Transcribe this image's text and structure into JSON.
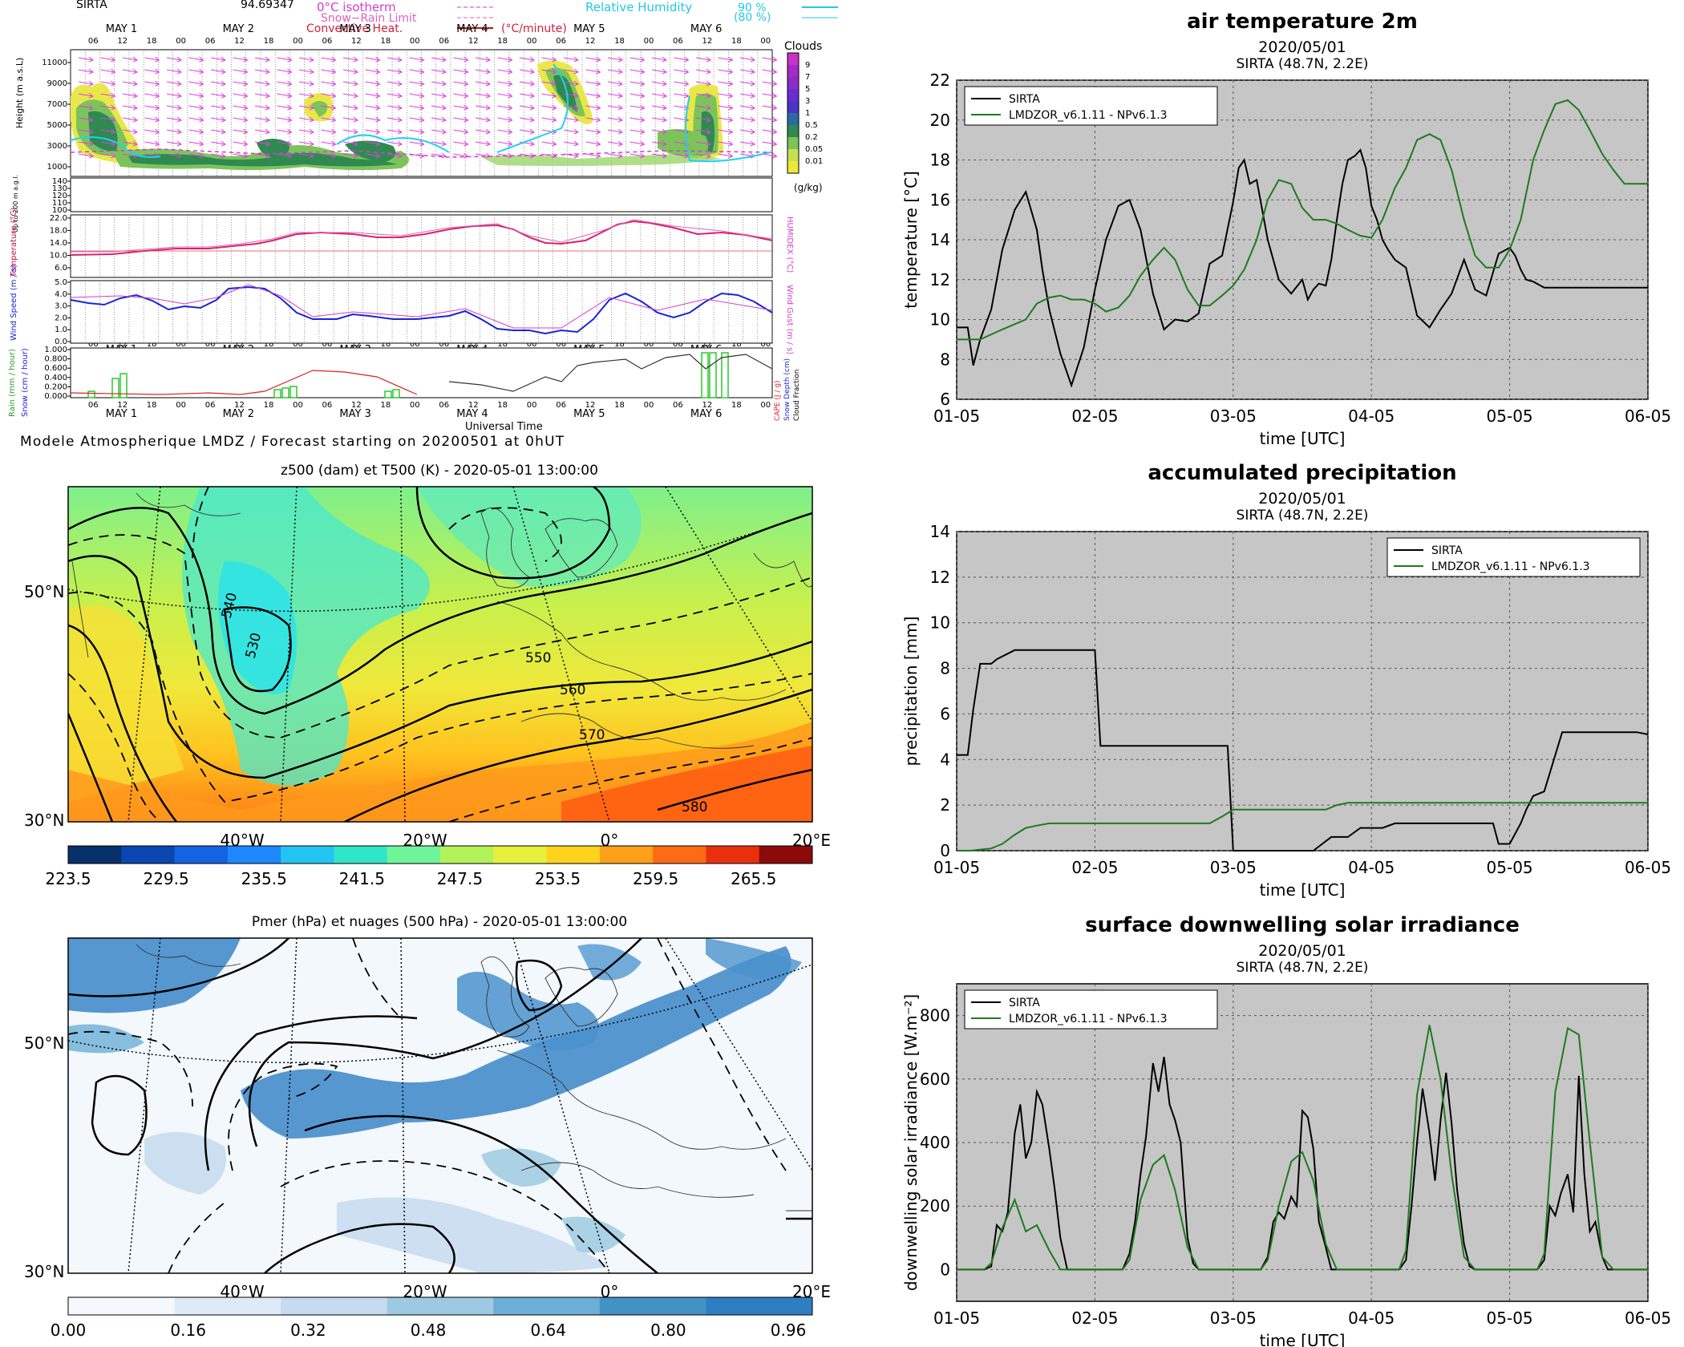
{
  "meteogram": {
    "station": "SIRTA",
    "altitude_text": "94.69347",
    "legend": {
      "isotherm": "0°C isotherm",
      "snow_rain": "Snow−Rain Limit",
      "convective": "Convective Heat.",
      "convective_unit": "(°C/minute)",
      "rh": "Relative Humidity",
      "rh_90": "90  %",
      "rh_80": "(80  %)"
    },
    "clouds_title": "Clouds",
    "clouds_unit": "(g/kg)",
    "clouds_ticks": [
      "9",
      "7",
      "5",
      "3",
      "1",
      "0.5",
      "0.2",
      "0.05",
      "0.01"
    ],
    "days": [
      "MAY  1",
      "MAY  2",
      "MAY  3",
      "MAY  4",
      "MAY  5",
      "MAY  6"
    ],
    "hour_labels": [
      "06",
      "12",
      "18",
      "00"
    ],
    "height_label": "Height (m a.s.L)",
    "height_ticks": [
      "11000",
      "9000",
      "7000",
      "5000",
      "3000",
      "1000"
    ],
    "low_height_label": "Up to 200 m a.g.l.",
    "low_height_ticks": [
      "140",
      "130",
      "120",
      "110",
      "100"
    ],
    "temp_label": "Temperature (°C)",
    "temp_ticks": [
      "22.0",
      "18.0",
      "14.0",
      "10.0",
      "6.0"
    ],
    "humidex_label": "HUMIDEX (°C)",
    "wind_label": "Wind Speed (m / s)",
    "wind_ticks": [
      "5.0",
      "4.0",
      "3.0",
      "2.0",
      "1.0",
      "0.0"
    ],
    "wind_gust_label": "Wind Gust (m / s)",
    "rain_ticks": [
      "1.000",
      "0.800",
      "0.600",
      "0.400",
      "0.200",
      "0.000"
    ],
    "rain_label": "Rain (mm / hour)",
    "snow_label": "Snow (cm / hour)",
    "cape_label": "CAPE (J / g)",
    "snow_depth_label": "Snow Depth (cm)",
    "cloud_fraction_label": "Cloud Fraction",
    "time_label": "Universal Time",
    "footer": "Modele Atmospherique LMDZ / Forecast starting on 20200501 at 0hUT"
  },
  "map1": {
    "title": "z500 (dam) et T500 (K) - 2020-05-01 13:00:00",
    "lat_labels": [
      "50°N",
      "30°N"
    ],
    "lon_labels": [
      "40°W",
      "20°W",
      "0°",
      "20°E"
    ],
    "contour_labels": [
      "540",
      "530",
      "550",
      "560",
      "570",
      "580"
    ],
    "colorbar_ticks": [
      "223.5",
      "229.5",
      "235.5",
      "241.5",
      "247.5",
      "253.5",
      "259.5",
      "265.5"
    ],
    "colorbar_colors": [
      "#08306b",
      "#0a47b0",
      "#1463e0",
      "#1e88ff",
      "#22c4f2",
      "#30e6c8",
      "#6ef59a",
      "#b4f25a",
      "#e6ef3c",
      "#ffd21e",
      "#ffa01a",
      "#ff6a14",
      "#e8300e",
      "#8c0a0a"
    ]
  },
  "map2": {
    "title": "Pmer (hPa) et nuages (500 hPa) - 2020-05-01 13:00:00",
    "lat_labels": [
      "50°N",
      "30°N"
    ],
    "lon_labels": [
      "40°W",
      "20°W",
      "0°",
      "20°E"
    ],
    "colorbar_ticks": [
      "0.00",
      "0.16",
      "0.32",
      "0.48",
      "0.64",
      "0.80",
      "0.96"
    ],
    "colorbar_colors": [
      "#f5f9fd",
      "#deebf7",
      "#c6dbef",
      "#9ecae1",
      "#6baed6",
      "#4292c6",
      "#2f7ec1"
    ]
  },
  "chart_data": [
    {
      "type": "line",
      "title": "air temperature 2m",
      "subtitle": "2020/05/01",
      "subtitle2": "SIRTA (48.7N, 2.2E)",
      "xlabel": "time [UTC]",
      "ylabel": "temperature [°C]",
      "x_ticks": [
        "01-05",
        "02-05",
        "03-05",
        "04-05",
        "05-05",
        "06-05"
      ],
      "y_ticks": [
        6,
        8,
        10,
        12,
        14,
        16,
        18,
        20,
        22
      ],
      "xlim": [
        0,
        5
      ],
      "ylim": [
        6,
        22
      ],
      "grid": true,
      "legend_position": "top-left",
      "series": [
        {
          "name": "SIRTA",
          "color": "#000000",
          "x": [
            0,
            0.08,
            0.12,
            0.17,
            0.25,
            0.33,
            0.42,
            0.5,
            0.58,
            0.62,
            0.67,
            0.75,
            0.83,
            0.92,
            1.0,
            1.08,
            1.17,
            1.25,
            1.33,
            1.42,
            1.5,
            1.58,
            1.67,
            1.75,
            1.83,
            1.92,
            2.0,
            2.04,
            2.08,
            2.12,
            2.17,
            2.25,
            2.33,
            2.42,
            2.5,
            2.54,
            2.58,
            2.62,
            2.67,
            2.71,
            2.75,
            2.79,
            2.83,
            2.88,
            2.92,
            2.96,
            3.0,
            3.04,
            3.08,
            3.12,
            3.17,
            3.25,
            3.33,
            3.42,
            3.5,
            3.58,
            3.67,
            3.75,
            3.83,
            3.92,
            4.0,
            4.04,
            4.08,
            4.12,
            4.17,
            4.25,
            4.33,
            4.42,
            4.5,
            4.58,
            4.67,
            4.75,
            4.83,
            4.92,
            5.0
          ],
          "y": [
            9.6,
            9.6,
            7.7,
            9.0,
            10.5,
            13.5,
            15.5,
            16.4,
            14.5,
            12.5,
            10.5,
            8.3,
            6.7,
            8.6,
            11.5,
            14.0,
            15.7,
            16.0,
            14.5,
            11.3,
            9.5,
            10.0,
            9.9,
            10.3,
            12.8,
            13.2,
            15.9,
            17.6,
            18.0,
            16.8,
            17.0,
            14.0,
            12.0,
            11.3,
            12.0,
            11.0,
            11.5,
            11.8,
            11.7,
            13.0,
            15.0,
            16.8,
            18.0,
            18.2,
            18.5,
            17.6,
            15.7,
            15.0,
            14.0,
            13.5,
            13.0,
            12.6,
            10.2,
            9.6,
            10.5,
            11.3,
            13.0,
            11.5,
            11.2,
            13.3,
            13.6,
            13.2,
            12.5,
            12.0,
            11.9,
            11.6,
            11.6,
            11.6,
            11.6,
            11.6,
            11.6,
            11.6,
            11.6,
            11.6,
            11.6
          ]
        },
        {
          "name": "LMDZOR_v6.1.11 - NPv6.1.3",
          "color": "#1e7a1e",
          "x": [
            0,
            0.17,
            0.33,
            0.5,
            0.58,
            0.67,
            0.75,
            0.83,
            0.92,
            1.0,
            1.08,
            1.17,
            1.25,
            1.33,
            1.42,
            1.5,
            1.58,
            1.67,
            1.75,
            1.83,
            1.92,
            2.0,
            2.08,
            2.17,
            2.25,
            2.33,
            2.42,
            2.5,
            2.58,
            2.67,
            2.75,
            2.83,
            2.92,
            3.0,
            3.08,
            3.17,
            3.25,
            3.33,
            3.42,
            3.5,
            3.58,
            3.67,
            3.75,
            3.83,
            3.92,
            4.0,
            4.08,
            4.17,
            4.25,
            4.33,
            4.42,
            4.5,
            4.58,
            4.67,
            4.75,
            4.83,
            4.92,
            5.0
          ],
          "y": [
            9.0,
            9.0,
            9.5,
            10.0,
            10.8,
            11.1,
            11.2,
            11.0,
            11.0,
            10.8,
            10.4,
            10.6,
            11.2,
            12.2,
            13.0,
            13.6,
            13.0,
            11.5,
            10.7,
            10.7,
            11.2,
            11.7,
            12.5,
            14.0,
            16.0,
            17.0,
            16.8,
            15.6,
            15.0,
            15.0,
            14.8,
            14.5,
            14.2,
            14.1,
            15.0,
            16.6,
            17.6,
            19.0,
            19.3,
            19.0,
            17.5,
            15.0,
            13.2,
            12.6,
            12.6,
            13.5,
            15.0,
            18.0,
            19.5,
            20.8,
            21.0,
            20.5,
            19.5,
            18.3,
            17.5,
            16.8,
            16.8,
            16.8
          ]
        }
      ]
    },
    {
      "type": "line",
      "title": "accumulated precipitation",
      "subtitle": "2020/05/01",
      "subtitle2": "SIRTA (48.7N, 2.2E)",
      "xlabel": "time [UTC]",
      "ylabel": "precipitation [mm]",
      "x_ticks": [
        "01-05",
        "02-05",
        "03-05",
        "04-05",
        "05-05",
        "06-05"
      ],
      "y_ticks": [
        0,
        2,
        4,
        6,
        8,
        10,
        12,
        14
      ],
      "xlim": [
        0,
        5
      ],
      "ylim": [
        0,
        14
      ],
      "grid": true,
      "legend_position": "top-right",
      "series": [
        {
          "name": "SIRTA",
          "color": "#000000",
          "x": [
            0,
            0.08,
            0.12,
            0.17,
            0.25,
            0.29,
            0.42,
            0.58,
            0.75,
            0.96,
            1.0,
            1.04,
            1.5,
            1.75,
            1.96,
            2.0,
            2.5,
            2.58,
            2.71,
            2.83,
            2.92,
            3.0,
            3.08,
            3.17,
            3.5,
            3.88,
            3.92,
            4.0,
            4.08,
            4.12,
            4.17,
            4.25,
            4.38,
            4.5,
            4.58,
            4.75,
            4.92,
            5.0
          ],
          "y": [
            4.2,
            4.2,
            6.2,
            8.2,
            8.2,
            8.4,
            8.8,
            8.8,
            8.8,
            8.8,
            8.8,
            4.6,
            4.6,
            4.6,
            4.6,
            0.0,
            0.0,
            0.0,
            0.6,
            0.6,
            1.0,
            1.0,
            1.0,
            1.2,
            1.2,
            1.2,
            0.3,
            0.3,
            1.2,
            1.8,
            2.4,
            2.6,
            5.2,
            5.2,
            5.2,
            5.2,
            5.2,
            5.1
          ]
        },
        {
          "name": "LMDZOR_v6.1.11 - NPv6.1.3",
          "color": "#1e7a1e",
          "x": [
            0,
            0.1,
            0.17,
            0.25,
            0.33,
            0.42,
            0.5,
            0.58,
            0.67,
            0.83,
            1.0,
            1.5,
            1.67,
            1.83,
            1.92,
            2.0,
            2.5,
            2.67,
            2.75,
            2.83,
            3.0,
            3.5,
            4.0,
            4.5,
            5.0
          ],
          "y": [
            0.0,
            0.0,
            0.05,
            0.1,
            0.3,
            0.7,
            1.0,
            1.1,
            1.2,
            1.2,
            1.2,
            1.2,
            1.2,
            1.2,
            1.5,
            1.8,
            1.8,
            1.8,
            2.0,
            2.1,
            2.1,
            2.1,
            2.1,
            2.1,
            2.1
          ]
        }
      ]
    },
    {
      "type": "line",
      "title": "surface downwelling solar irradiance",
      "subtitle": "2020/05/01",
      "subtitle2": "SIRTA (48.7N, 2.2E)",
      "xlabel": "time [UTC]",
      "ylabel": "downwelling solar irradiance [W.m⁻²]",
      "x_ticks": [
        "01-05",
        "02-05",
        "03-05",
        "04-05",
        "05-05",
        "06-05"
      ],
      "y_ticks": [
        0,
        200,
        400,
        600,
        800
      ],
      "xlim": [
        0,
        5
      ],
      "ylim": [
        -100,
        900
      ],
      "grid": true,
      "legend_position": "top-left",
      "series": [
        {
          "name": "SIRTA",
          "color": "#000000",
          "x": [
            0,
            0.2,
            0.25,
            0.29,
            0.33,
            0.37,
            0.42,
            0.46,
            0.5,
            0.54,
            0.58,
            0.62,
            0.67,
            0.71,
            0.75,
            0.8,
            1.0,
            1.2,
            1.25,
            1.29,
            1.33,
            1.37,
            1.42,
            1.46,
            1.5,
            1.54,
            1.58,
            1.62,
            1.67,
            1.71,
            1.75,
            1.8,
            2.0,
            2.2,
            2.25,
            2.29,
            2.33,
            2.37,
            2.42,
            2.46,
            2.5,
            2.54,
            2.58,
            2.62,
            2.67,
            2.71,
            2.75,
            2.8,
            3.0,
            3.2,
            3.25,
            3.29,
            3.33,
            3.37,
            3.42,
            3.46,
            3.5,
            3.54,
            3.58,
            3.62,
            3.67,
            3.71,
            3.75,
            3.8,
            4.0,
            4.2,
            4.25,
            4.29,
            4.33,
            4.37,
            4.42,
            4.46,
            4.5,
            4.54,
            4.58,
            4.62,
            4.67,
            4.71,
            4.75,
            4.8,
            5.0
          ],
          "y": [
            0,
            0,
            10,
            140,
            120,
            180,
            430,
            520,
            350,
            400,
            560,
            520,
            380,
            250,
            100,
            0,
            0,
            0,
            50,
            150,
            300,
            420,
            650,
            560,
            670,
            520,
            470,
            400,
            100,
            20,
            0,
            0,
            0,
            0,
            40,
            150,
            180,
            160,
            230,
            200,
            500,
            480,
            380,
            150,
            70,
            0,
            0,
            0,
            0,
            0,
            30,
            200,
            400,
            570,
            430,
            280,
            470,
            620,
            460,
            250,
            80,
            10,
            0,
            0,
            0,
            0,
            30,
            200,
            170,
            240,
            300,
            180,
            610,
            300,
            120,
            150,
            40,
            0,
            0,
            0,
            0
          ]
        },
        {
          "name": "LMDZOR_v6.1.11 - NPv6.1.3",
          "color": "#1e7a1e",
          "x": [
            0,
            0.2,
            0.25,
            0.33,
            0.42,
            0.5,
            0.58,
            0.67,
            0.75,
            0.8,
            1.0,
            1.2,
            1.25,
            1.33,
            1.42,
            1.5,
            1.58,
            1.67,
            1.75,
            1.8,
            2.0,
            2.2,
            2.25,
            2.33,
            2.42,
            2.5,
            2.58,
            2.67,
            2.75,
            2.8,
            3.0,
            3.2,
            3.25,
            3.33,
            3.42,
            3.5,
            3.58,
            3.67,
            3.75,
            3.8,
            4.0,
            4.2,
            4.25,
            4.33,
            4.42,
            4.5,
            4.58,
            4.67,
            4.75,
            4.8,
            5.0
          ],
          "y": [
            0,
            0,
            20,
            130,
            220,
            120,
            140,
            60,
            0,
            0,
            0,
            0,
            30,
            220,
            330,
            360,
            250,
            70,
            0,
            0,
            0,
            0,
            30,
            200,
            340,
            370,
            280,
            80,
            0,
            0,
            0,
            0,
            60,
            550,
            770,
            600,
            300,
            40,
            0,
            0,
            0,
            0,
            50,
            560,
            760,
            740,
            400,
            40,
            0,
            0,
            0
          ]
        }
      ]
    }
  ]
}
